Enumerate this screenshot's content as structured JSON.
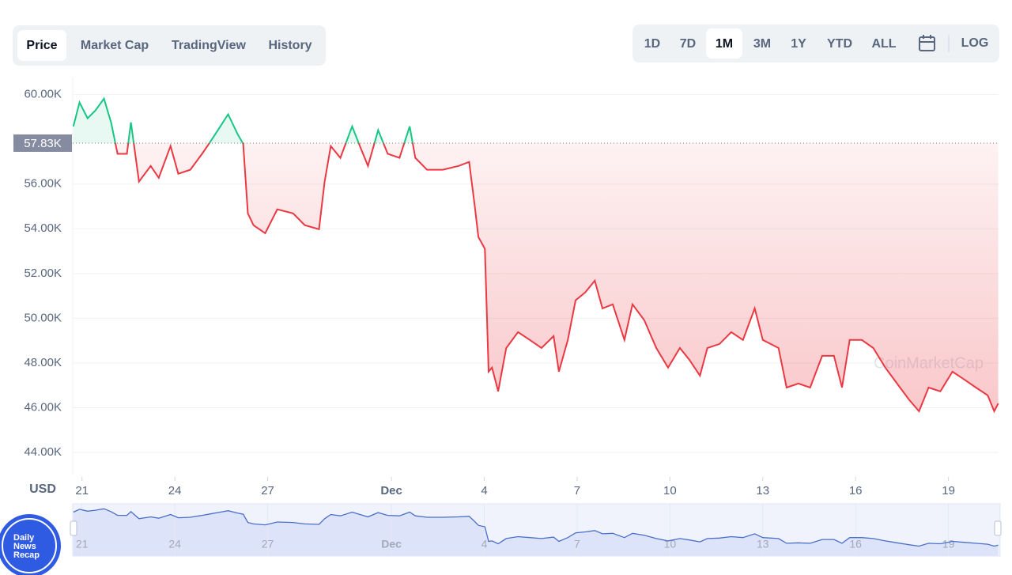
{
  "tabs": [
    {
      "label": "Price",
      "active": true
    },
    {
      "label": "Market Cap",
      "active": false
    },
    {
      "label": "TradingView",
      "active": false
    },
    {
      "label": "History",
      "active": false
    }
  ],
  "ranges": [
    {
      "label": "1D",
      "active": false
    },
    {
      "label": "7D",
      "active": false
    },
    {
      "label": "1M",
      "active": true
    },
    {
      "label": "3M",
      "active": false
    },
    {
      "label": "1Y",
      "active": false
    },
    {
      "label": "YTD",
      "active": false
    },
    {
      "label": "ALL",
      "active": false
    }
  ],
  "log_button": "LOG",
  "watermark": "CoinMarketCap",
  "logo": [
    "Daily",
    "News",
    "Recap"
  ],
  "chart_data": {
    "type": "line",
    "currency_label": "USD",
    "x": [
      -0.28,
      -0.08,
      0.18,
      0.43,
      0.71,
      0.94,
      1.15,
      1.45,
      1.58,
      1.84,
      2.22,
      2.48,
      2.86,
      3.11,
      3.5,
      3.88,
      4.14,
      4.47,
      4.72,
      5.03,
      5.21,
      5.36,
      5.54,
      5.92,
      6.31,
      6.82,
      7.2,
      7.66,
      7.84,
      8.04,
      8.35,
      8.73,
      8.98,
      9.24,
      9.57,
      9.88,
      10.26,
      10.59,
      10.77,
      11.15,
      11.66,
      12.17,
      12.51,
      12.69,
      12.81,
      13.02,
      13.14,
      13.25,
      13.45,
      13.71,
      14.09,
      14.47,
      14.85,
      15.24,
      15.41,
      15.7,
      15.95,
      16.26,
      16.57,
      16.82,
      17.15,
      17.53,
      17.79,
      18.17,
      18.56,
      18.94,
      19.32,
      19.63,
      19.97,
      20.21,
      20.6,
      20.98,
      21.36,
      21.74,
      22.0,
      22.51,
      22.77,
      23.15,
      23.53,
      23.92,
      24.3,
      24.56,
      24.81,
      25.2,
      25.57,
      25.96,
      26.34,
      26.72,
      27.05,
      27.36,
      27.74,
      28.13,
      28.51,
      28.89,
      29.27,
      29.48,
      29.61
    ],
    "series": [
      {
        "name": "Price",
        "color_up": "#16c784",
        "color_down": "#ea3943",
        "values": [
          58580,
          59650,
          58940,
          59290,
          59820,
          58760,
          57350,
          57350,
          58760,
          56110,
          56810,
          56280,
          57700,
          56460,
          56640,
          57350,
          57880,
          58580,
          59120,
          58230,
          57800,
          54690,
          54160,
          53800,
          54870,
          54690,
          54160,
          53980,
          56110,
          57700,
          57170,
          58580,
          57700,
          56810,
          58410,
          57350,
          57170,
          58580,
          57170,
          56640,
          56640,
          56810,
          56990,
          55040,
          53630,
          53100,
          47610,
          47790,
          46730,
          48670,
          49380,
          49030,
          48670,
          49200,
          47610,
          49030,
          50800,
          51150,
          51680,
          50440,
          50620,
          49030,
          50620,
          49910,
          48670,
          47790,
          48670,
          48140,
          47430,
          48670,
          48850,
          49380,
          49030,
          50440,
          49030,
          48670,
          46900,
          47080,
          46900,
          48320,
          48320,
          46900,
          49030,
          49030,
          48670,
          47790,
          47080,
          46370,
          45840,
          46900,
          46730,
          47610,
          47260,
          46900,
          46550,
          45840,
          46190
        ]
      }
    ],
    "reference": {
      "value": 57830,
      "label": "57.83K"
    },
    "xlim": [
      -0.3,
      29.62
    ],
    "xticks": [
      {
        "value": 0,
        "label": "21"
      },
      {
        "value": 3,
        "label": "24"
      },
      {
        "value": 6,
        "label": "27"
      },
      {
        "value": 10,
        "label": "Dec"
      },
      {
        "value": 13,
        "label": "4"
      },
      {
        "value": 16,
        "label": "7"
      },
      {
        "value": 19,
        "label": "10"
      },
      {
        "value": 22,
        "label": "13"
      },
      {
        "value": 25,
        "label": "16"
      },
      {
        "value": 28,
        "label": "19"
      }
    ],
    "ylim": [
      43010,
      60800
    ],
    "yticks": [
      {
        "value": 44000,
        "label": "44.00K"
      },
      {
        "value": 46000,
        "label": "46.00K"
      },
      {
        "value": 48000,
        "label": "48.00K"
      },
      {
        "value": 50000,
        "label": "50.00K"
      },
      {
        "value": 52000,
        "label": "52.00K"
      },
      {
        "value": 54000,
        "label": "54.00K"
      },
      {
        "value": 56000,
        "label": "56.00K"
      },
      {
        "value": 60000,
        "label": "60.00K"
      }
    ],
    "grid": true
  }
}
